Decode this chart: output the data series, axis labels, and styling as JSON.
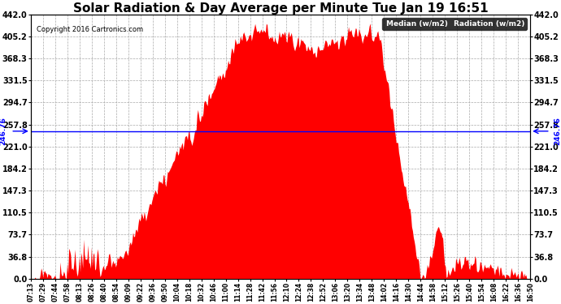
{
  "title": "Solar Radiation & Day Average per Minute Tue Jan 19 16:51",
  "copyright": "Copyright 2016 Cartronics.com",
  "median_value": 246.76,
  "ymin": 0.0,
  "ymax": 442.0,
  "yticks": [
    0.0,
    36.8,
    73.7,
    110.5,
    147.3,
    184.2,
    221.0,
    257.8,
    294.7,
    331.5,
    368.3,
    405.2,
    442.0
  ],
  "ytick_labels": [
    "0.0",
    "36.8",
    "73.7",
    "110.5",
    "147.3",
    "184.2",
    "221.0",
    "257.8",
    "294.7",
    "331.5",
    "368.3",
    "405.2",
    "442.0"
  ],
  "xtick_labels": [
    "07:13",
    "07:29",
    "07:44",
    "07:58",
    "08:13",
    "08:26",
    "08:40",
    "08:54",
    "09:09",
    "09:22",
    "09:36",
    "09:50",
    "10:04",
    "10:18",
    "10:32",
    "10:46",
    "11:00",
    "11:14",
    "11:28",
    "11:42",
    "11:56",
    "12:10",
    "12:24",
    "12:38",
    "12:52",
    "13:06",
    "13:20",
    "13:34",
    "13:48",
    "14:02",
    "14:16",
    "14:30",
    "14:44",
    "14:58",
    "15:12",
    "15:26",
    "15:40",
    "15:54",
    "16:08",
    "16:22",
    "16:36",
    "16:50"
  ],
  "fill_color": "#ff0000",
  "median_color": "#0000ff",
  "background_color": "#ffffff",
  "grid_color": "#aaaaaa",
  "title_fontsize": 11,
  "median_label": "Median (w/m2)",
  "radiation_label": "Radiation (w/m2)",
  "legend_median_bg": "#0000aa",
  "legend_radiation_bg": "#cc0000"
}
